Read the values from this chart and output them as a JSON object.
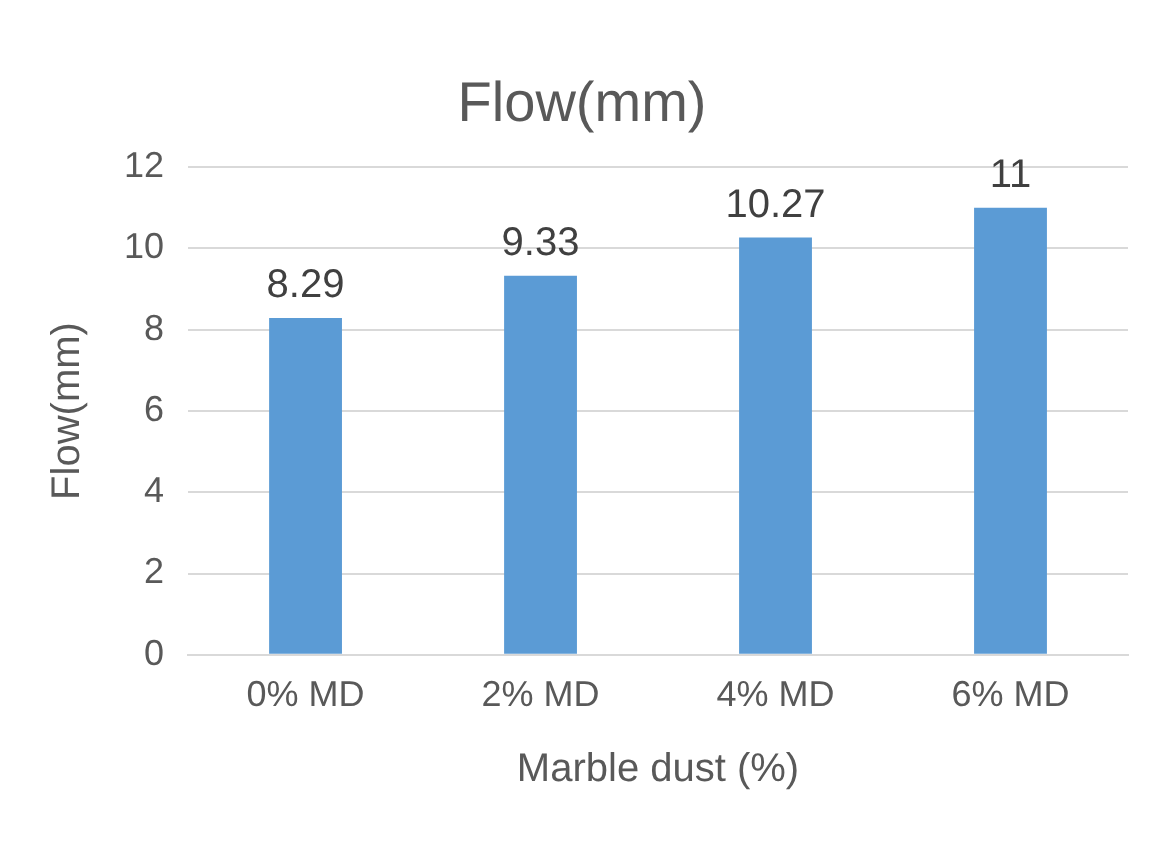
{
  "chart_data": {
    "type": "bar",
    "title": "Flow(mm)",
    "xlabel": "Marble dust (%)",
    "ylabel": "Flow(mm)",
    "categories": [
      "0% MD",
      "2% MD",
      "4% MD",
      "6% MD"
    ],
    "values": [
      8.29,
      9.33,
      10.27,
      11
    ],
    "color": "#5b9bd5",
    "ylim": [
      0,
      12
    ],
    "yticks": [
      0,
      2,
      4,
      6,
      8,
      10,
      12
    ],
    "grid": "y",
    "data_labels": true,
    "legend": false
  }
}
